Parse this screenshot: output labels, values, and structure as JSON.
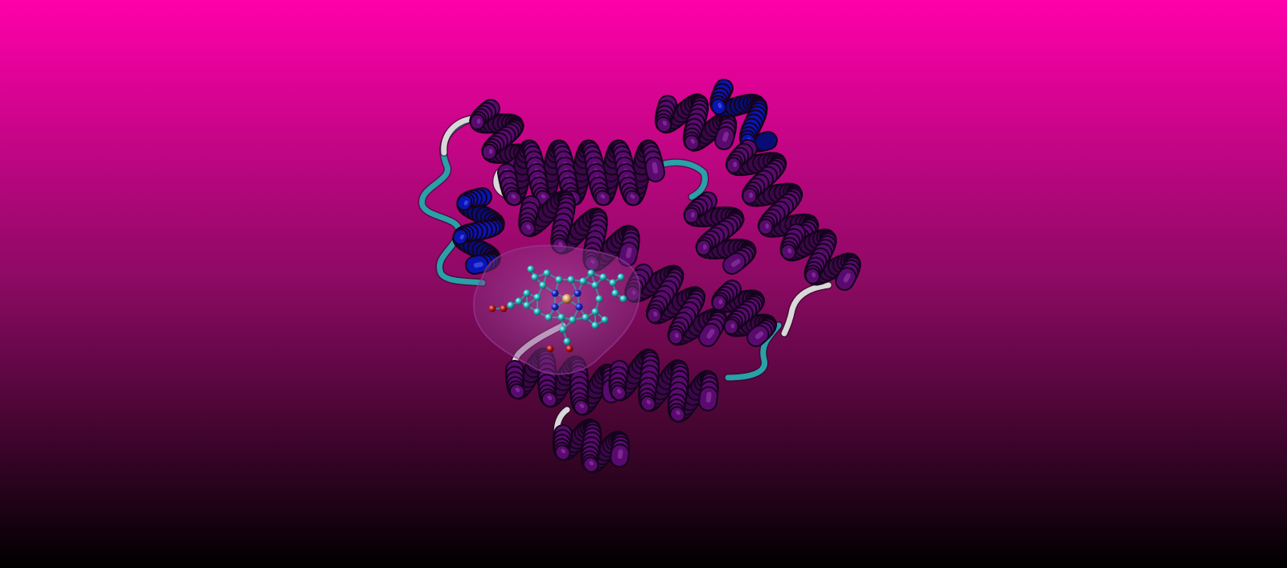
{
  "scene": {
    "background_top_color": "#ff00aa",
    "background_bottom_color": "#000000",
    "helix_color": "#5a0a6e",
    "helix_highlight_color": "#9b3fb3",
    "three_ten_helix_color": "#0a14b4",
    "turn_color": "#2aa0a8",
    "coil_color": "#d8d8d8",
    "pocket_surface_color": "#9a3a9a",
    "ligand_carbon_color": "#2ec4c4",
    "ligand_nitrogen_color": "#1a2ad0",
    "ligand_oxygen_color": "#c01818",
    "ligand_metal_color": "#e0a070"
  }
}
